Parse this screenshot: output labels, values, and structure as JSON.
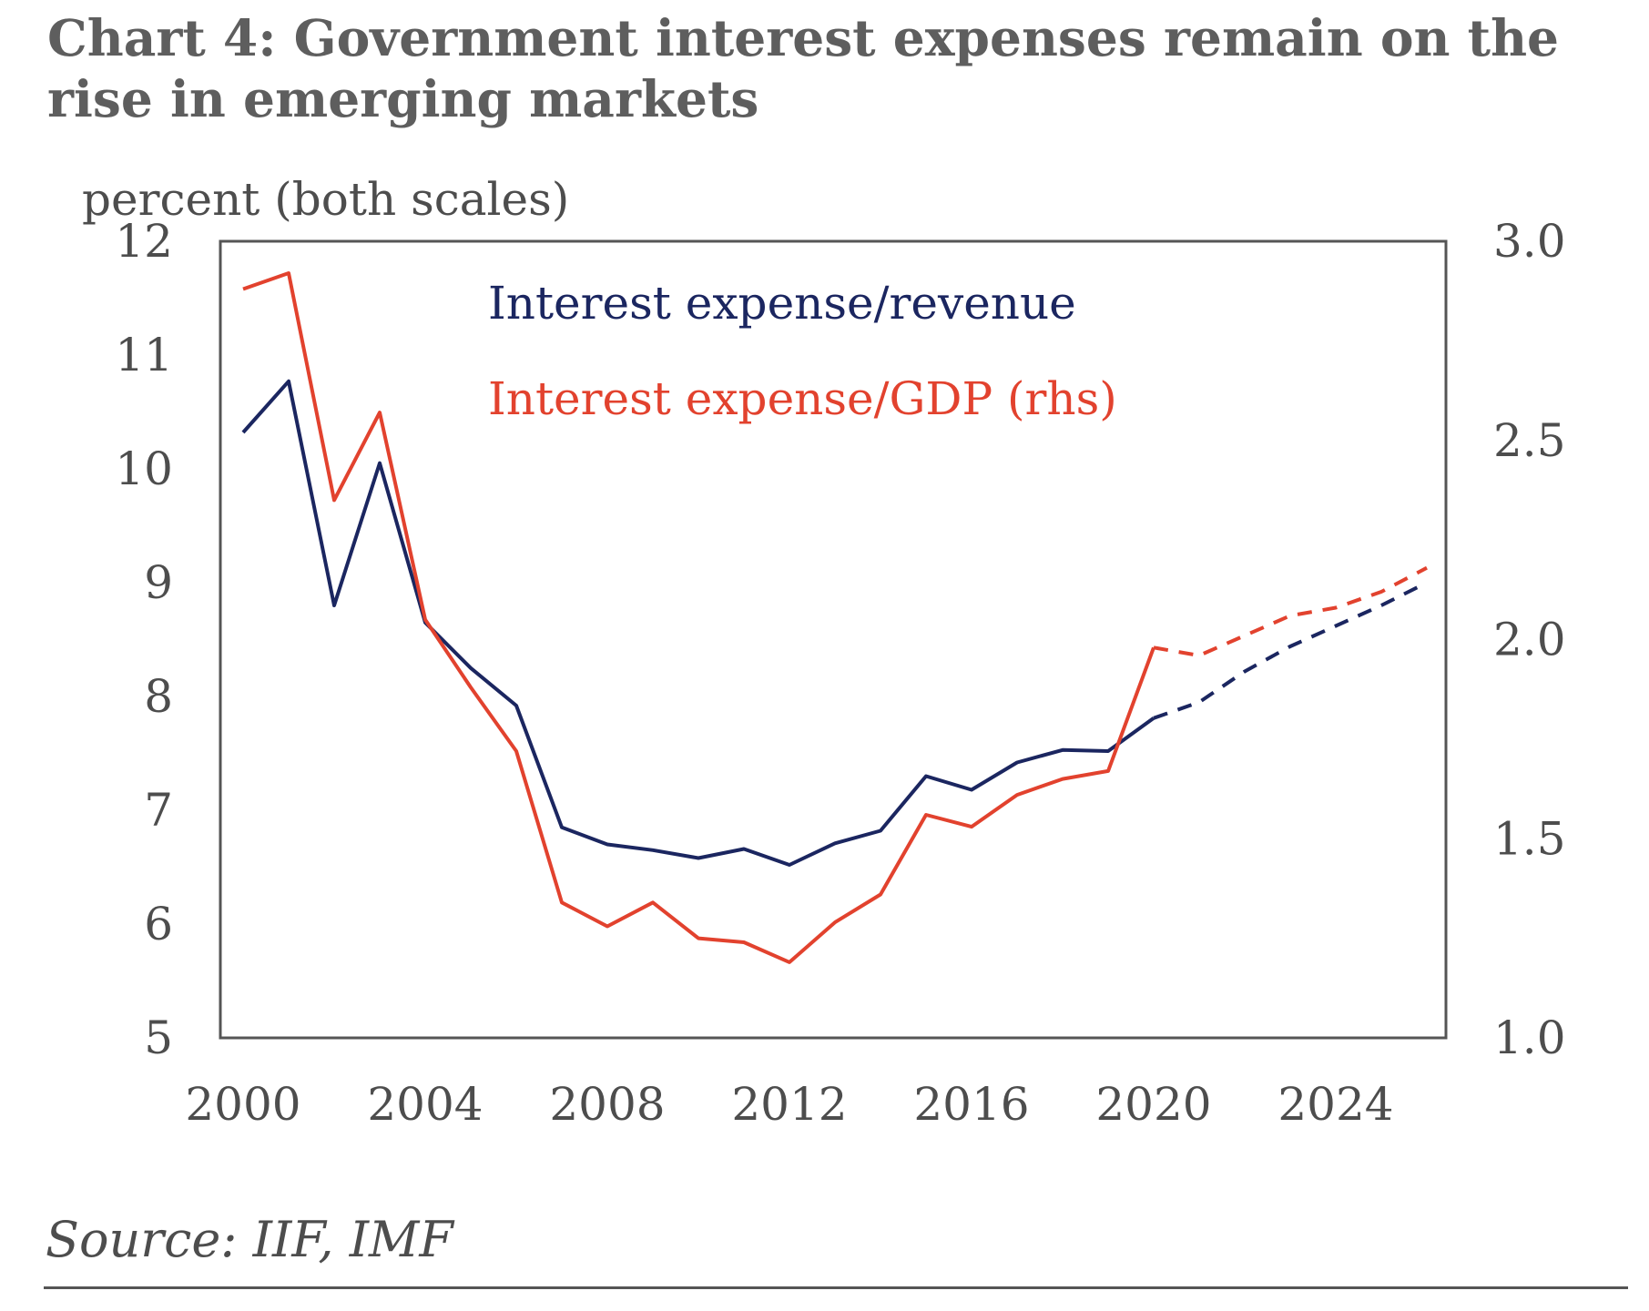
{
  "chart_data": {
    "type": "line",
    "title": "Chart 4: Government interest expenses remain on the rise in emerging markets",
    "ylabel": "percent (both scales)",
    "ylim": [
      5,
      12
    ],
    "y2lim": [
      1.0,
      3.0
    ],
    "yticks": [
      "12",
      "11",
      "10",
      "9",
      "8",
      "7",
      "6",
      "5"
    ],
    "y2ticks": [
      "3.0",
      "2.5",
      "2.0",
      "1.5",
      "1.0"
    ],
    "xticks": [
      "2000",
      "2004",
      "2008",
      "2012",
      "2016",
      "2020",
      "2024"
    ],
    "x": [
      2000,
      2001,
      2002,
      2003,
      2004,
      2005,
      2006,
      2007,
      2008,
      2009,
      2010,
      2011,
      2012,
      2013,
      2014,
      2015,
      2016,
      2017,
      2018,
      2019,
      2020,
      2021,
      2022,
      2023,
      2024,
      2025,
      2026
    ],
    "forecast_from": 2020,
    "series": [
      {
        "name": "Interest expense/revenue",
        "axis": "left",
        "color": "#1b2660",
        "values": [
          10.32,
          10.77,
          8.8,
          10.05,
          8.65,
          8.25,
          7.92,
          6.85,
          6.7,
          6.65,
          6.58,
          6.66,
          6.52,
          6.71,
          6.82,
          7.3,
          7.18,
          7.42,
          7.53,
          7.52,
          7.81,
          7.95,
          8.22,
          8.44,
          8.62,
          8.8,
          9.0
        ]
      },
      {
        "name": "Interest expense/GDP (rhs)",
        "axis": "right",
        "color": "#e2422e",
        "values": [
          2.88,
          2.92,
          2.35,
          2.57,
          2.05,
          1.88,
          1.72,
          1.34,
          1.28,
          1.34,
          1.25,
          1.24,
          1.19,
          1.29,
          1.36,
          1.56,
          1.53,
          1.61,
          1.65,
          1.67,
          1.98,
          1.96,
          2.01,
          2.06,
          2.08,
          2.12,
          2.18
        ]
      }
    ],
    "source": "Source: IIF, IMF"
  }
}
